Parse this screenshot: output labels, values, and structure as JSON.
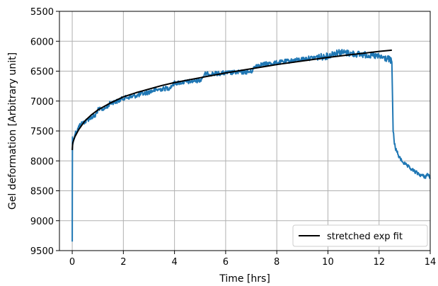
{
  "chart_data": {
    "type": "line",
    "title": "",
    "xlabel": "Time [hrs]",
    "ylabel": "Gel deformation [Arbitrary unit]",
    "xlim": [
      -0.5,
      14
    ],
    "ylim": [
      9500,
      5500
    ],
    "y_inverted": true,
    "x_ticks": [
      0,
      2,
      4,
      6,
      8,
      10,
      12,
      14
    ],
    "y_ticks": [
      5500,
      6000,
      6500,
      7000,
      7500,
      8000,
      8500,
      9000,
      9500
    ],
    "grid": true,
    "legend": {
      "placement": "lower-right",
      "entries": [
        "stretched exp fit"
      ]
    },
    "series": [
      {
        "style": "noisy-line",
        "color": "#1f77b4",
        "x": [
          0,
          0.01,
          0.02,
          0.05,
          0.1,
          0.2,
          0.3,
          0.45,
          0.5,
          0.7,
          0.9,
          1.0,
          1.3,
          1.5,
          1.8,
          2.0,
          2.3,
          2.6,
          3.0,
          3.2,
          3.5,
          3.8,
          4.0,
          4.5,
          5.0,
          5.2,
          5.6,
          6.0,
          6.5,
          7.0,
          7.2,
          7.6,
          8.0,
          8.5,
          9.0,
          9.5,
          10.0,
          10.2,
          10.4,
          10.8,
          11.0,
          11.3,
          11.6,
          12.0,
          12.2,
          12.4,
          12.5,
          12.55,
          12.6,
          12.65,
          12.7,
          12.8,
          13.0,
          13.2,
          13.4,
          13.6,
          13.8,
          13.9,
          14.0
        ],
        "y": [
          9350,
          7600,
          7720,
          7650,
          7550,
          7480,
          7400,
          7350,
          7350,
          7280,
          7250,
          7150,
          7120,
          7030,
          7000,
          6950,
          6930,
          6900,
          6850,
          6820,
          6800,
          6780,
          6700,
          6680,
          6650,
          6550,
          6540,
          6530,
          6520,
          6510,
          6400,
          6380,
          6360,
          6330,
          6300,
          6270,
          6250,
          6200,
          6180,
          6200,
          6210,
          6220,
          6230,
          6260,
          6280,
          6300,
          6350,
          7500,
          7700,
          7800,
          7850,
          7950,
          8050,
          8120,
          8180,
          8230,
          8270,
          8220,
          8280
        ]
      },
      {
        "name": "stretched exp fit",
        "style": "fit-line",
        "color": "#000000",
        "x": [
          0,
          0.02,
          0.1,
          0.25,
          0.5,
          0.75,
          1,
          1.5,
          2,
          2.5,
          3,
          3.5,
          4,
          4.5,
          5,
          6,
          7,
          8,
          9,
          10,
          11,
          12,
          12.5
        ],
        "y": [
          7820,
          7700,
          7600,
          7480,
          7330,
          7230,
          7150,
          7030,
          6930,
          6860,
          6800,
          6740,
          6690,
          6650,
          6610,
          6530,
          6460,
          6390,
          6330,
          6270,
          6220,
          6170,
          6150
        ]
      }
    ]
  }
}
